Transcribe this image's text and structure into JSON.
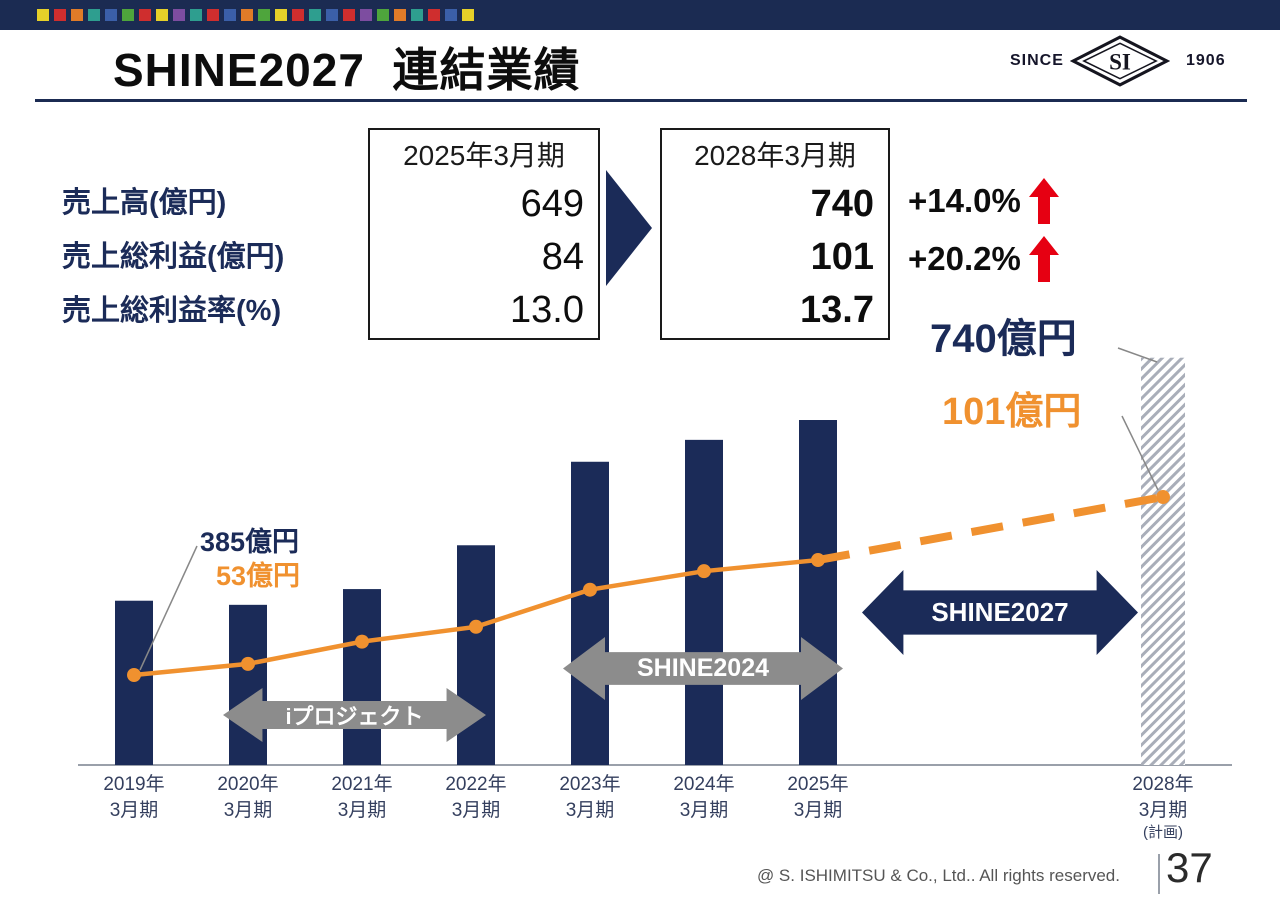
{
  "title": "SHINE2027  連結業績",
  "logo": {
    "since": "SINCE",
    "initials": "SI",
    "year": "1906"
  },
  "header": {
    "bar_color": "#1b2b52",
    "deco_colors": [
      "#e6d029",
      "#cf2e2e",
      "#e07b28",
      "#2e9e8f",
      "#3b5fa8",
      "#4ea53c",
      "#cf2e2e",
      "#e6d029",
      "#7d4da0",
      "#2e9e8f",
      "#cf2e2e",
      "#3b5fa8",
      "#e07b28",
      "#4ea53c",
      "#e6d029",
      "#cf2e2e",
      "#2e9e8f",
      "#3b5fa8",
      "#cf2e2e",
      "#7d4da0",
      "#4ea53c",
      "#e07b28",
      "#2e9e8f",
      "#cf2e2e",
      "#3b5fa8",
      "#e6d029"
    ]
  },
  "summary_table": {
    "row_labels": [
      "売上高(億円)",
      "売上総利益(億円)",
      "売上総利益率(%)"
    ],
    "columns": [
      {
        "header": "2025年3月期",
        "values": [
          "649",
          "84",
          "13.0"
        ]
      },
      {
        "header": "2028年3月期",
        "values": [
          "740",
          "101",
          "13.7"
        ]
      }
    ],
    "changes": [
      {
        "label": "+14.0%",
        "direction": "up"
      },
      {
        "label": "+20.2%",
        "direction": "up"
      }
    ]
  },
  "annotations": {
    "plan_revenue": "740億円",
    "plan_profit": "101億円",
    "start_revenue": "385億円",
    "start_profit": "53億円"
  },
  "period_arrows": [
    {
      "label": "iプロジェクト"
    },
    {
      "label": "SHINE2024"
    },
    {
      "label": "SHINE2027"
    }
  ],
  "footer": {
    "copyright": "@ S. ISHIMITSU & Co., Ltd.. All rights reserved.",
    "page": "37"
  },
  "colors": {
    "navy": "#1b2b58",
    "orange": "#f0912f",
    "red": "#e60012",
    "gray_arrow": "#8c8c8c"
  },
  "chart_data": {
    "type": "bar",
    "combo": "bar+line",
    "title": "",
    "categories": [
      "2019年3月期",
      "2020年3月期",
      "2021年3月期",
      "2022年3月期",
      "2023年3月期",
      "2024年3月期",
      "2025年3月期",
      "2028年3月期(計画)"
    ],
    "category_lines": [
      [
        "2019年",
        "3月期"
      ],
      [
        "2020年",
        "3月期"
      ],
      [
        "2021年",
        "3月期"
      ],
      [
        "2022年",
        "3月期"
      ],
      [
        "2023年",
        "3月期"
      ],
      [
        "2024年",
        "3月期"
      ],
      [
        "2025年",
        "3月期"
      ],
      [
        "2028年",
        "3月期",
        "(計画)"
      ]
    ],
    "series": [
      {
        "name": "売上高(億円)",
        "type": "bar",
        "color": "#1b2b58",
        "values": [
          385,
          379,
          402,
          466,
          588,
          620,
          649,
          740
        ],
        "plan_index": 7
      },
      {
        "name": "売上総利益(億円)",
        "type": "line",
        "color": "#f0912f",
        "values": [
          53,
          56,
          62,
          66,
          76,
          81,
          84,
          101
        ],
        "dashed_from_index": 6
      }
    ],
    "point_labels": {
      "first_bar": "385億円",
      "first_point": "53億円",
      "plan_bar": "740億円",
      "plan_point": "101億円"
    },
    "y_axis": {
      "visible": false
    },
    "x_axis": {
      "visible": true
    },
    "legend": "none"
  }
}
